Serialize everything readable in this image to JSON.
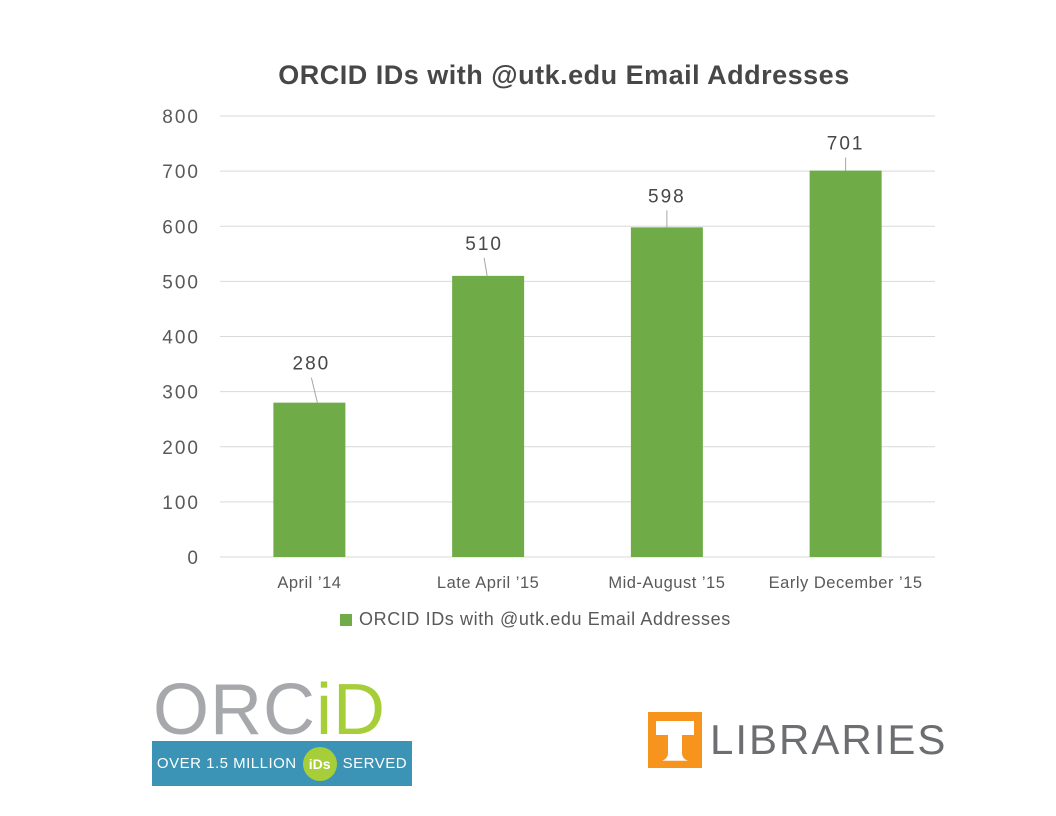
{
  "title": "ORCID IDs with @utk.edu Email Addresses",
  "chart_data": {
    "type": "bar",
    "title": "ORCID IDs with @utk.edu Email Addresses",
    "categories": [
      "April ’14",
      "Late April ’15",
      "Mid-August ’15",
      "Early December ’15"
    ],
    "values": [
      280,
      510,
      598,
      701
    ],
    "data_labels": [
      "280",
      "510",
      "598",
      "701"
    ],
    "series": [
      {
        "name": "ORCID IDs with @utk.edu Email Addresses",
        "values": [
          280,
          510,
          598,
          701
        ]
      }
    ],
    "xlabel": "",
    "ylabel": "",
    "ylim": [
      0,
      800
    ],
    "ytick_step": 100,
    "yticks": [
      0,
      100,
      200,
      300,
      400,
      500,
      600,
      700,
      800
    ],
    "grid": true,
    "legend_position": "bottom",
    "bar_color": "#6fac47"
  },
  "legend": {
    "label": "ORCID IDs with @utk.edu Email Addresses",
    "swatch_color": "#6fac47"
  },
  "footer": {
    "orcid_logo": {
      "wordmark_gray": "ORC",
      "wordmark_green": "iD",
      "banner_prefix": "OVER 1.5 MILLION",
      "banner_badge": "iDs",
      "banner_suffix": "SERVED",
      "banner_color": "#3b93b5",
      "green": "#a6ce39",
      "gray": "#a6a8ab"
    },
    "ut_logo": {
      "wordmark": "LIBRARIES",
      "orange": "#f7941e",
      "gray": "#6d6e71"
    }
  },
  "colors": {
    "bar": "#6fac47",
    "gridline": "#d9d9d9",
    "axis_text": "#595959",
    "value_text": "#474747",
    "title_text": "#474747",
    "leader_line": "#a6a6a6"
  }
}
